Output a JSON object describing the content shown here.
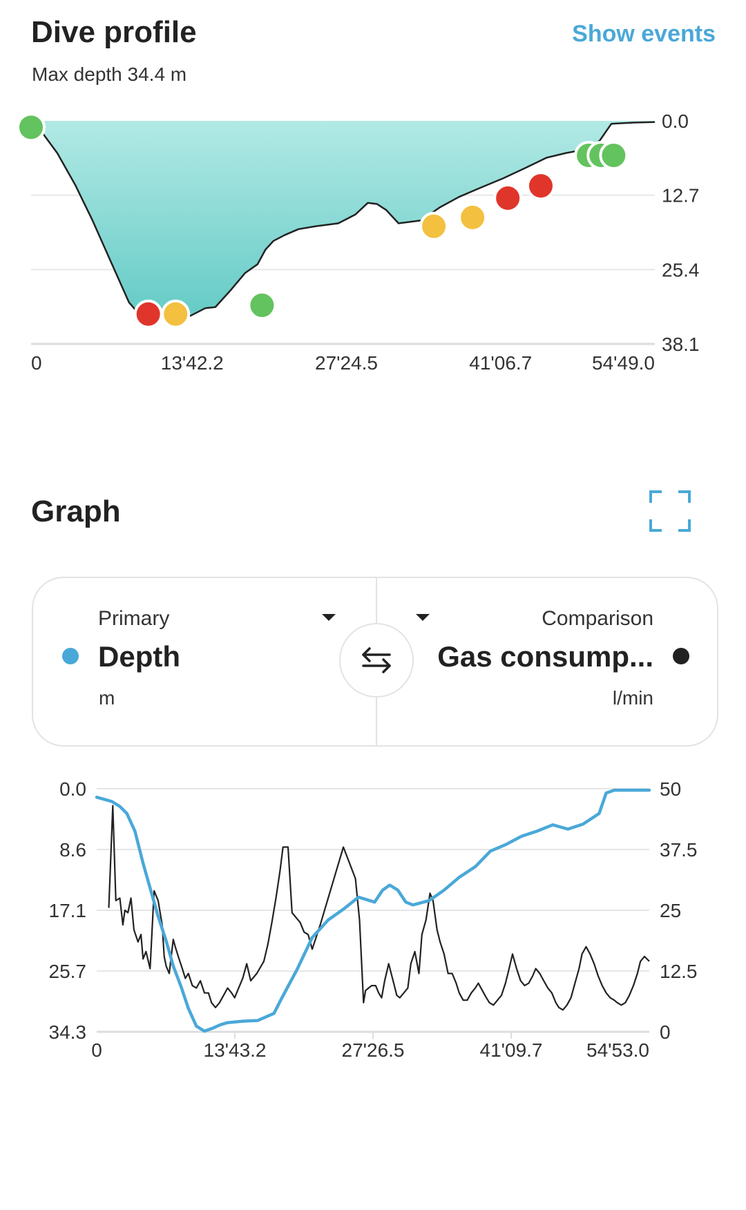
{
  "profile": {
    "title": "Dive profile",
    "subtitle": "Max depth 34.4 m",
    "show_events": "Show events"
  },
  "graph": {
    "title": "Graph",
    "primary_label": "Primary",
    "primary_value": "Depth",
    "primary_unit": "m",
    "comparison_label": "Comparison",
    "comparison_value": "Gas consump...",
    "comparison_unit": "l/min"
  },
  "colors": {
    "accent": "#4aa8d8",
    "fill_top": "#b2e9e5",
    "fill_bottom": "#65cbc6",
    "event_green": "#63c35e",
    "event_red": "#e0352b",
    "event_yellow": "#f3c03f",
    "comparison_line": "#222222",
    "grid": "#e6e6e6"
  },
  "chart_data": [
    {
      "type": "area",
      "title": "Dive profile",
      "xlabel": "",
      "ylabel": "",
      "ylim": [
        38.1,
        0
      ],
      "y_inverted": true,
      "y_ticks": [
        "0.0",
        "12.7",
        "25.4",
        "38.1"
      ],
      "x_ticks": [
        "0",
        "13'42.2",
        "27'24.5",
        "41'06.7",
        "54'49.0"
      ],
      "xlim_min": [
        0,
        54.82
      ],
      "series": [
        {
          "values_x_min": [
            0,
            0.9,
            2.3,
            3.9,
            5.4,
            7.0,
            8.6,
            9.5,
            10.2,
            11.0,
            12.0,
            13.0,
            14.0,
            15.3,
            16.2,
            17.5,
            18.8,
            19.9,
            20.6,
            21.3,
            22.3,
            23.5,
            25.0,
            27.0,
            28.5,
            29.6,
            30.4,
            31.2,
            32.3,
            34.3,
            35.9,
            37.6,
            39.4,
            41.5,
            43.5,
            45.3,
            47.0,
            49.2,
            50.0,
            51.0,
            53.0,
            54.82
          ],
          "values_depth_m": [
            0.5,
            1.8,
            5.5,
            11.0,
            17.0,
            24.0,
            31.0,
            33.0,
            33.4,
            33.1,
            33.5,
            33.0,
            33.3,
            32.0,
            31.8,
            29.0,
            26.0,
            24.5,
            22.0,
            20.5,
            19.5,
            18.5,
            18.0,
            17.5,
            16.0,
            14.0,
            14.2,
            15.2,
            17.5,
            17.0,
            14.8,
            13.0,
            11.5,
            9.8,
            8.0,
            6.3,
            5.5,
            4.7,
            3.3,
            0.5,
            0.3,
            0.2
          ]
        }
      ],
      "events": [
        {
          "time_min": 0,
          "depth_m": 1.1,
          "color": "green"
        },
        {
          "time_min": 10.3,
          "depth_m": 33.0,
          "color": "red"
        },
        {
          "time_min": 12.7,
          "depth_m": 33.0,
          "color": "yellow"
        },
        {
          "time_min": 20.3,
          "depth_m": 31.5,
          "color": "green"
        },
        {
          "time_min": 35.4,
          "depth_m": 18.0,
          "color": "yellow"
        },
        {
          "time_min": 38.8,
          "depth_m": 16.5,
          "color": "yellow"
        },
        {
          "time_min": 41.9,
          "depth_m": 13.2,
          "color": "red"
        },
        {
          "time_min": 44.8,
          "depth_m": 11.1,
          "color": "red"
        },
        {
          "time_min": 49.0,
          "depth_m": 5.9,
          "color": "green"
        },
        {
          "time_min": 50.1,
          "depth_m": 5.9,
          "color": "green"
        },
        {
          "time_min": 51.2,
          "depth_m": 5.9,
          "color": "green"
        }
      ]
    },
    {
      "type": "line",
      "title": "",
      "xlabel": "",
      "ylabel": "",
      "x_ticks": [
        "0",
        "13'43.2",
        "27'26.5",
        "41'09.7",
        "54'53.0"
      ],
      "xlim_min": [
        0,
        54.88
      ],
      "y_left_ticks": [
        "0.0",
        "8.6",
        "17.1",
        "25.7",
        "34.3"
      ],
      "ylim_left": [
        34.3,
        0
      ],
      "y_right_ticks": [
        "50",
        "37.5",
        "25",
        "12.5",
        "0"
      ],
      "ylim_right": [
        0,
        50
      ],
      "series": [
        {
          "name": "Depth",
          "axis": "left",
          "x_min": [
            0,
            1.5,
            2.3,
            3.0,
            3.8,
            4.6,
            5.4,
            6.1,
            6.9,
            7.6,
            8.4,
            9.1,
            9.9,
            10.7,
            11.5,
            12.3,
            13.0,
            14.5,
            16.0,
            17.6,
            18.4,
            19.9,
            21.4,
            23.0,
            24.5,
            26.0,
            27.6,
            28.4,
            29.1,
            29.9,
            30.7,
            31.4,
            33.0,
            34.5,
            36.0,
            37.6,
            39.1,
            40.6,
            42.2,
            43.7,
            45.3,
            46.8,
            48.3,
            49.9,
            50.6,
            51.4,
            54.88
          ],
          "values": [
            1.2,
            1.8,
            2.5,
            3.5,
            6.0,
            10.5,
            14.5,
            18.0,
            21.5,
            25.0,
            28.0,
            31.0,
            33.5,
            34.2,
            33.8,
            33.3,
            33.0,
            32.8,
            32.7,
            31.7,
            29.5,
            25.5,
            21.0,
            18.5,
            17.0,
            15.3,
            16.0,
            14.3,
            13.6,
            14.3,
            16.0,
            16.4,
            15.8,
            14.3,
            12.5,
            11.0,
            8.8,
            7.9,
            6.7,
            6.0,
            5.1,
            5.7,
            5.0,
            3.5,
            0.6,
            0.2,
            0.2
          ]
        },
        {
          "name": "Gas consump...",
          "axis": "right",
          "x_min": [
            1.2,
            1.6,
            1.9,
            2.3,
            2.6,
            2.8,
            3.1,
            3.4,
            3.7,
            4.1,
            4.4,
            4.6,
            4.9,
            5.3,
            5.7,
            6.1,
            6.5,
            6.7,
            6.9,
            7.2,
            7.6,
            7.8,
            8.1,
            8.5,
            8.8,
            9.1,
            9.5,
            9.9,
            10.3,
            10.7,
            11.1,
            11.4,
            11.8,
            12.2,
            12.6,
            13.0,
            13.4,
            13.7,
            14.1,
            14.5,
            14.9,
            15.3,
            15.9,
            16.6,
            17.0,
            17.4,
            17.8,
            18.2,
            18.5,
            19.0,
            19.4,
            19.8,
            20.2,
            20.6,
            21.0,
            21.4,
            22.2,
            24.5,
            25.7,
            26.1,
            26.5,
            26.7,
            27.0,
            27.3,
            27.7,
            28.0,
            28.3,
            28.6,
            29.0,
            29.5,
            29.8,
            30.1,
            30.5,
            30.9,
            31.2,
            31.6,
            32.0,
            32.3,
            32.7,
            33.1,
            33.4,
            33.8,
            34.1,
            34.5,
            34.9,
            35.3,
            35.7,
            36.0,
            36.4,
            36.8,
            37.2,
            37.6,
            37.9,
            38.3,
            38.7,
            39.0,
            39.4,
            39.8,
            40.2,
            40.6,
            40.9,
            41.3,
            41.7,
            42.1,
            42.5,
            42.9,
            43.3,
            43.6,
            44.0,
            44.4,
            44.8,
            45.2,
            45.6,
            45.9,
            46.3,
            46.7,
            47.1,
            47.5,
            47.9,
            48.2,
            48.6,
            49.0,
            49.4,
            49.8,
            50.2,
            50.6,
            51.0,
            51.4,
            51.7,
            52.1,
            52.5,
            52.9,
            53.3,
            53.7,
            54.0,
            54.4,
            54.88
          ],
          "values": [
            25.5,
            46.5,
            27.0,
            27.5,
            22.0,
            25.0,
            24.5,
            27.5,
            21.0,
            18.5,
            20.0,
            15.0,
            16.5,
            13.0,
            29.0,
            27.0,
            22.0,
            15.5,
            13.5,
            12.0,
            19.0,
            17.5,
            15.5,
            13.0,
            11.0,
            12.0,
            9.5,
            9.0,
            10.5,
            8.0,
            8.0,
            6.0,
            5.0,
            6.0,
            7.5,
            9.0,
            8.0,
            7.0,
            9.0,
            11.0,
            14.0,
            10.5,
            12.0,
            14.5,
            18.0,
            22.5,
            27.5,
            33.0,
            38.0,
            38.0,
            24.5,
            23.5,
            22.5,
            20.5,
            20.0,
            17.0,
            22.0,
            38.0,
            31.5,
            23.0,
            6.0,
            8.5,
            9.0,
            9.5,
            9.5,
            8.0,
            7.0,
            10.5,
            14.0,
            10.0,
            7.5,
            7.0,
            8.0,
            9.0,
            14.0,
            16.5,
            12.0,
            20.0,
            23.0,
            28.5,
            27.0,
            21.0,
            18.5,
            16.0,
            12.0,
            12.0,
            10.0,
            8.0,
            6.5,
            6.5,
            8.0,
            9.0,
            10.0,
            8.5,
            7.0,
            6.0,
            5.5,
            6.5,
            7.5,
            10.0,
            12.5,
            16.0,
            13.0,
            10.5,
            9.5,
            10.0,
            11.5,
            13.0,
            12.0,
            10.5,
            9.0,
            8.0,
            6.0,
            5.0,
            4.5,
            5.5,
            7.0,
            10.0,
            13.0,
            16.0,
            17.5,
            16.0,
            14.0,
            11.5,
            9.5,
            8.0,
            7.0,
            6.5,
            6.0,
            5.5,
            6.0,
            7.5,
            9.5,
            12.0,
            14.5,
            15.5,
            14.5
          ]
        }
      ]
    }
  ]
}
